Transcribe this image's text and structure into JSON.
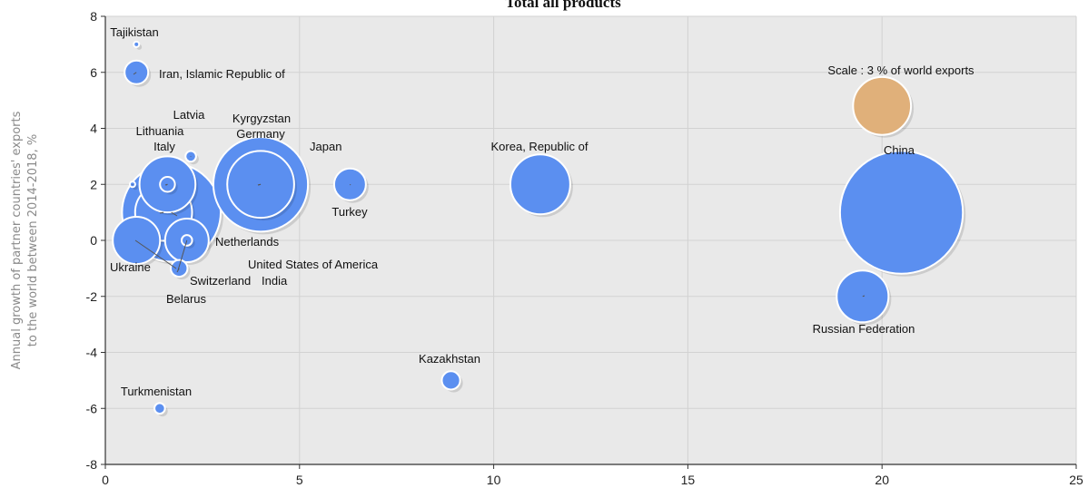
{
  "chart_data": {
    "type": "scatter",
    "title": "Total all products",
    "xlabel": "",
    "ylabel": "Annual growth of partner countries' exports to the world between 2014-2018, %",
    "xlim": [
      0,
      25
    ],
    "ylim": [
      -8,
      8
    ],
    "x_ticks": [
      "0",
      "5",
      "10",
      "15",
      "20",
      "25"
    ],
    "y_ticks": [
      "8",
      "6",
      "4",
      "2",
      "0",
      "-2",
      "-4",
      "-6",
      "-8"
    ],
    "grid": true,
    "bubble_color": "#5b8ff0",
    "scale_color": "#e0b07a",
    "background_color": "#e9e9e9",
    "scale_bubble": {
      "label": "Scale : 3 % of world exports",
      "x": 20,
      "y": 4.8,
      "share": 3
    },
    "points": [
      {
        "label": "Tajikistan",
        "x": 0.8,
        "y": 7,
        "share": 0.01
      },
      {
        "label": "Iran, Islamic Republic of",
        "x": 0.8,
        "y": 6,
        "share": 0.5
      },
      {
        "label": "Latvia",
        "x": 2.2,
        "y": 3,
        "share": 0.1
      },
      {
        "label": "Kyrgyzstan",
        "x": 0.7,
        "y": 2,
        "share": 0.01
      },
      {
        "label": "Lithuania",
        "x": 1.6,
        "y": 2,
        "share": 0.2
      },
      {
        "label": "Italy",
        "x": 1.6,
        "y": 2,
        "share": 2.8
      },
      {
        "label": "Germany",
        "x": 4,
        "y": 2,
        "share": 8
      },
      {
        "label": "Japan",
        "x": 4,
        "y": 2,
        "share": 4
      },
      {
        "label": "Turkey",
        "x": 6.3,
        "y": 2,
        "share": 0.9
      },
      {
        "label": "Korea, Republic of",
        "x": 11.2,
        "y": 2,
        "share": 3.2
      },
      {
        "label": "China",
        "x": 20.5,
        "y": 1,
        "share": 13.5
      },
      {
        "label": "Netherlands",
        "x": 1.5,
        "y": 1,
        "share": 2.9
      },
      {
        "label": "United States of America",
        "x": 1.7,
        "y": 1,
        "share": 8.7
      },
      {
        "label": "India",
        "x": 2.1,
        "y": 0,
        "share": 1.7
      },
      {
        "label": "Ukraine",
        "x": 0.8,
        "y": 0,
        "share": 2
      },
      {
        "label": "Switzerland",
        "x": 2.1,
        "y": 0,
        "share": 0.1
      },
      {
        "label": "Belarus",
        "x": 1.9,
        "y": -1,
        "share": 0.25
      },
      {
        "label": "Russian Federation",
        "x": 19.5,
        "y": -2,
        "share": 2.4
      },
      {
        "label": "Kazakhstan",
        "x": 8.9,
        "y": -5,
        "share": 0.3
      },
      {
        "label": "Turkmenistan",
        "x": 1.4,
        "y": -6,
        "share": 0.1
      }
    ]
  }
}
